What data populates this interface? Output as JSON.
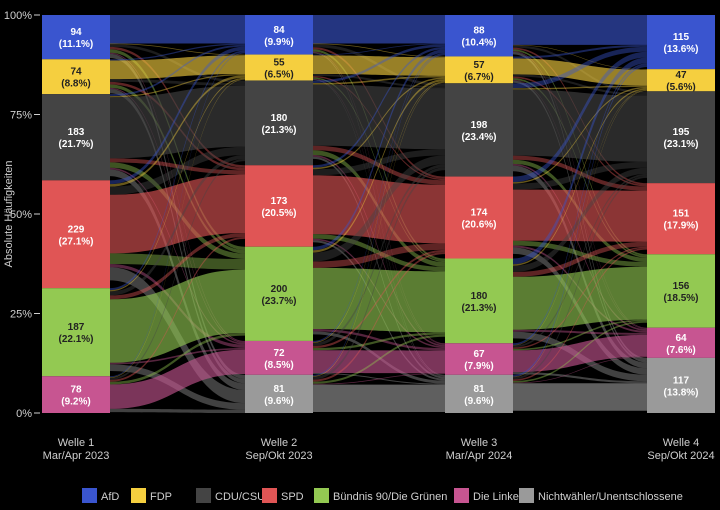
{
  "chart_data": {
    "type": "sankey",
    "ylabel": "Absolute Häufigkeiten",
    "yticks": [
      "0%",
      "25%",
      "50%",
      "75%",
      "100%"
    ],
    "waves": [
      {
        "label": [
          "Welle 1",
          "Mar/Apr 2023"
        ]
      },
      {
        "label": [
          "Welle 2",
          "Sep/Okt 2023"
        ]
      },
      {
        "label": [
          "Welle 3",
          "Mar/Apr 2024"
        ]
      },
      {
        "label": [
          "Welle 4",
          "Sep/Okt 2024"
        ]
      }
    ],
    "parties": [
      {
        "key": "afd",
        "name": "AfD",
        "color": "#3a55cf"
      },
      {
        "key": "fdp",
        "name": "FDP",
        "color": "#f5cf3f"
      },
      {
        "key": "cdu",
        "name": "CDU/CSU",
        "color": "#444444"
      },
      {
        "key": "spd",
        "name": "SPD",
        "color": "#e05555"
      },
      {
        "key": "gruene",
        "name": "Bündnis 90/Die Grünen",
        "color": "#93c952"
      },
      {
        "key": "linke",
        "name": "Die Linke",
        "color": "#c75591"
      },
      {
        "key": "nicht",
        "name": "Nichtwähler/Unentschlossene",
        "color": "#9a9a9a"
      }
    ],
    "values": [
      {
        "afd": 94,
        "fdp": 74,
        "cdu": 183,
        "spd": 229,
        "gruene": 187,
        "linke": 78
      },
      {
        "afd": 84,
        "fdp": 55,
        "cdu": 180,
        "spd": 173,
        "gruene": 200,
        "linke": 72,
        "nicht": 81
      },
      {
        "afd": 88,
        "fdp": 57,
        "cdu": 198,
        "spd": 174,
        "gruene": 180,
        "linke": 67,
        "nicht": 81
      },
      {
        "afd": 115,
        "fdp": 47,
        "cdu": 195,
        "spd": 151,
        "gruene": 156,
        "linke": 64,
        "nicht": 117
      }
    ],
    "percents": [
      {
        "afd": "(11.1%)",
        "fdp": "(8.8%)",
        "cdu": "(21.7%)",
        "spd": "(27.1%)",
        "gruene": "(22.1%)",
        "linke": "(9.2%)"
      },
      {
        "afd": "(9.9%)",
        "fdp": "(6.5%)",
        "cdu": "(21.3%)",
        "spd": "(20.5%)",
        "gruene": "(23.7%)",
        "linke": "(8.5%)",
        "nicht": "(9.6%)"
      },
      {
        "afd": "(10.4%)",
        "fdp": "(6.7%)",
        "cdu": "(23.4%)",
        "spd": "(20.6%)",
        "gruene": "(21.3%)",
        "linke": "(7.9%)",
        "nicht": "(9.6%)"
      },
      {
        "afd": "(13.6%)",
        "fdp": "(5.6%)",
        "cdu": "(23.1%)",
        "spd": "(17.9%)",
        "gruene": "(18.5%)",
        "linke": "(7.6%)",
        "nicht": "(13.8%)"
      }
    ],
    "stay_ratio": 0.72,
    "legend_position": "bottom"
  }
}
